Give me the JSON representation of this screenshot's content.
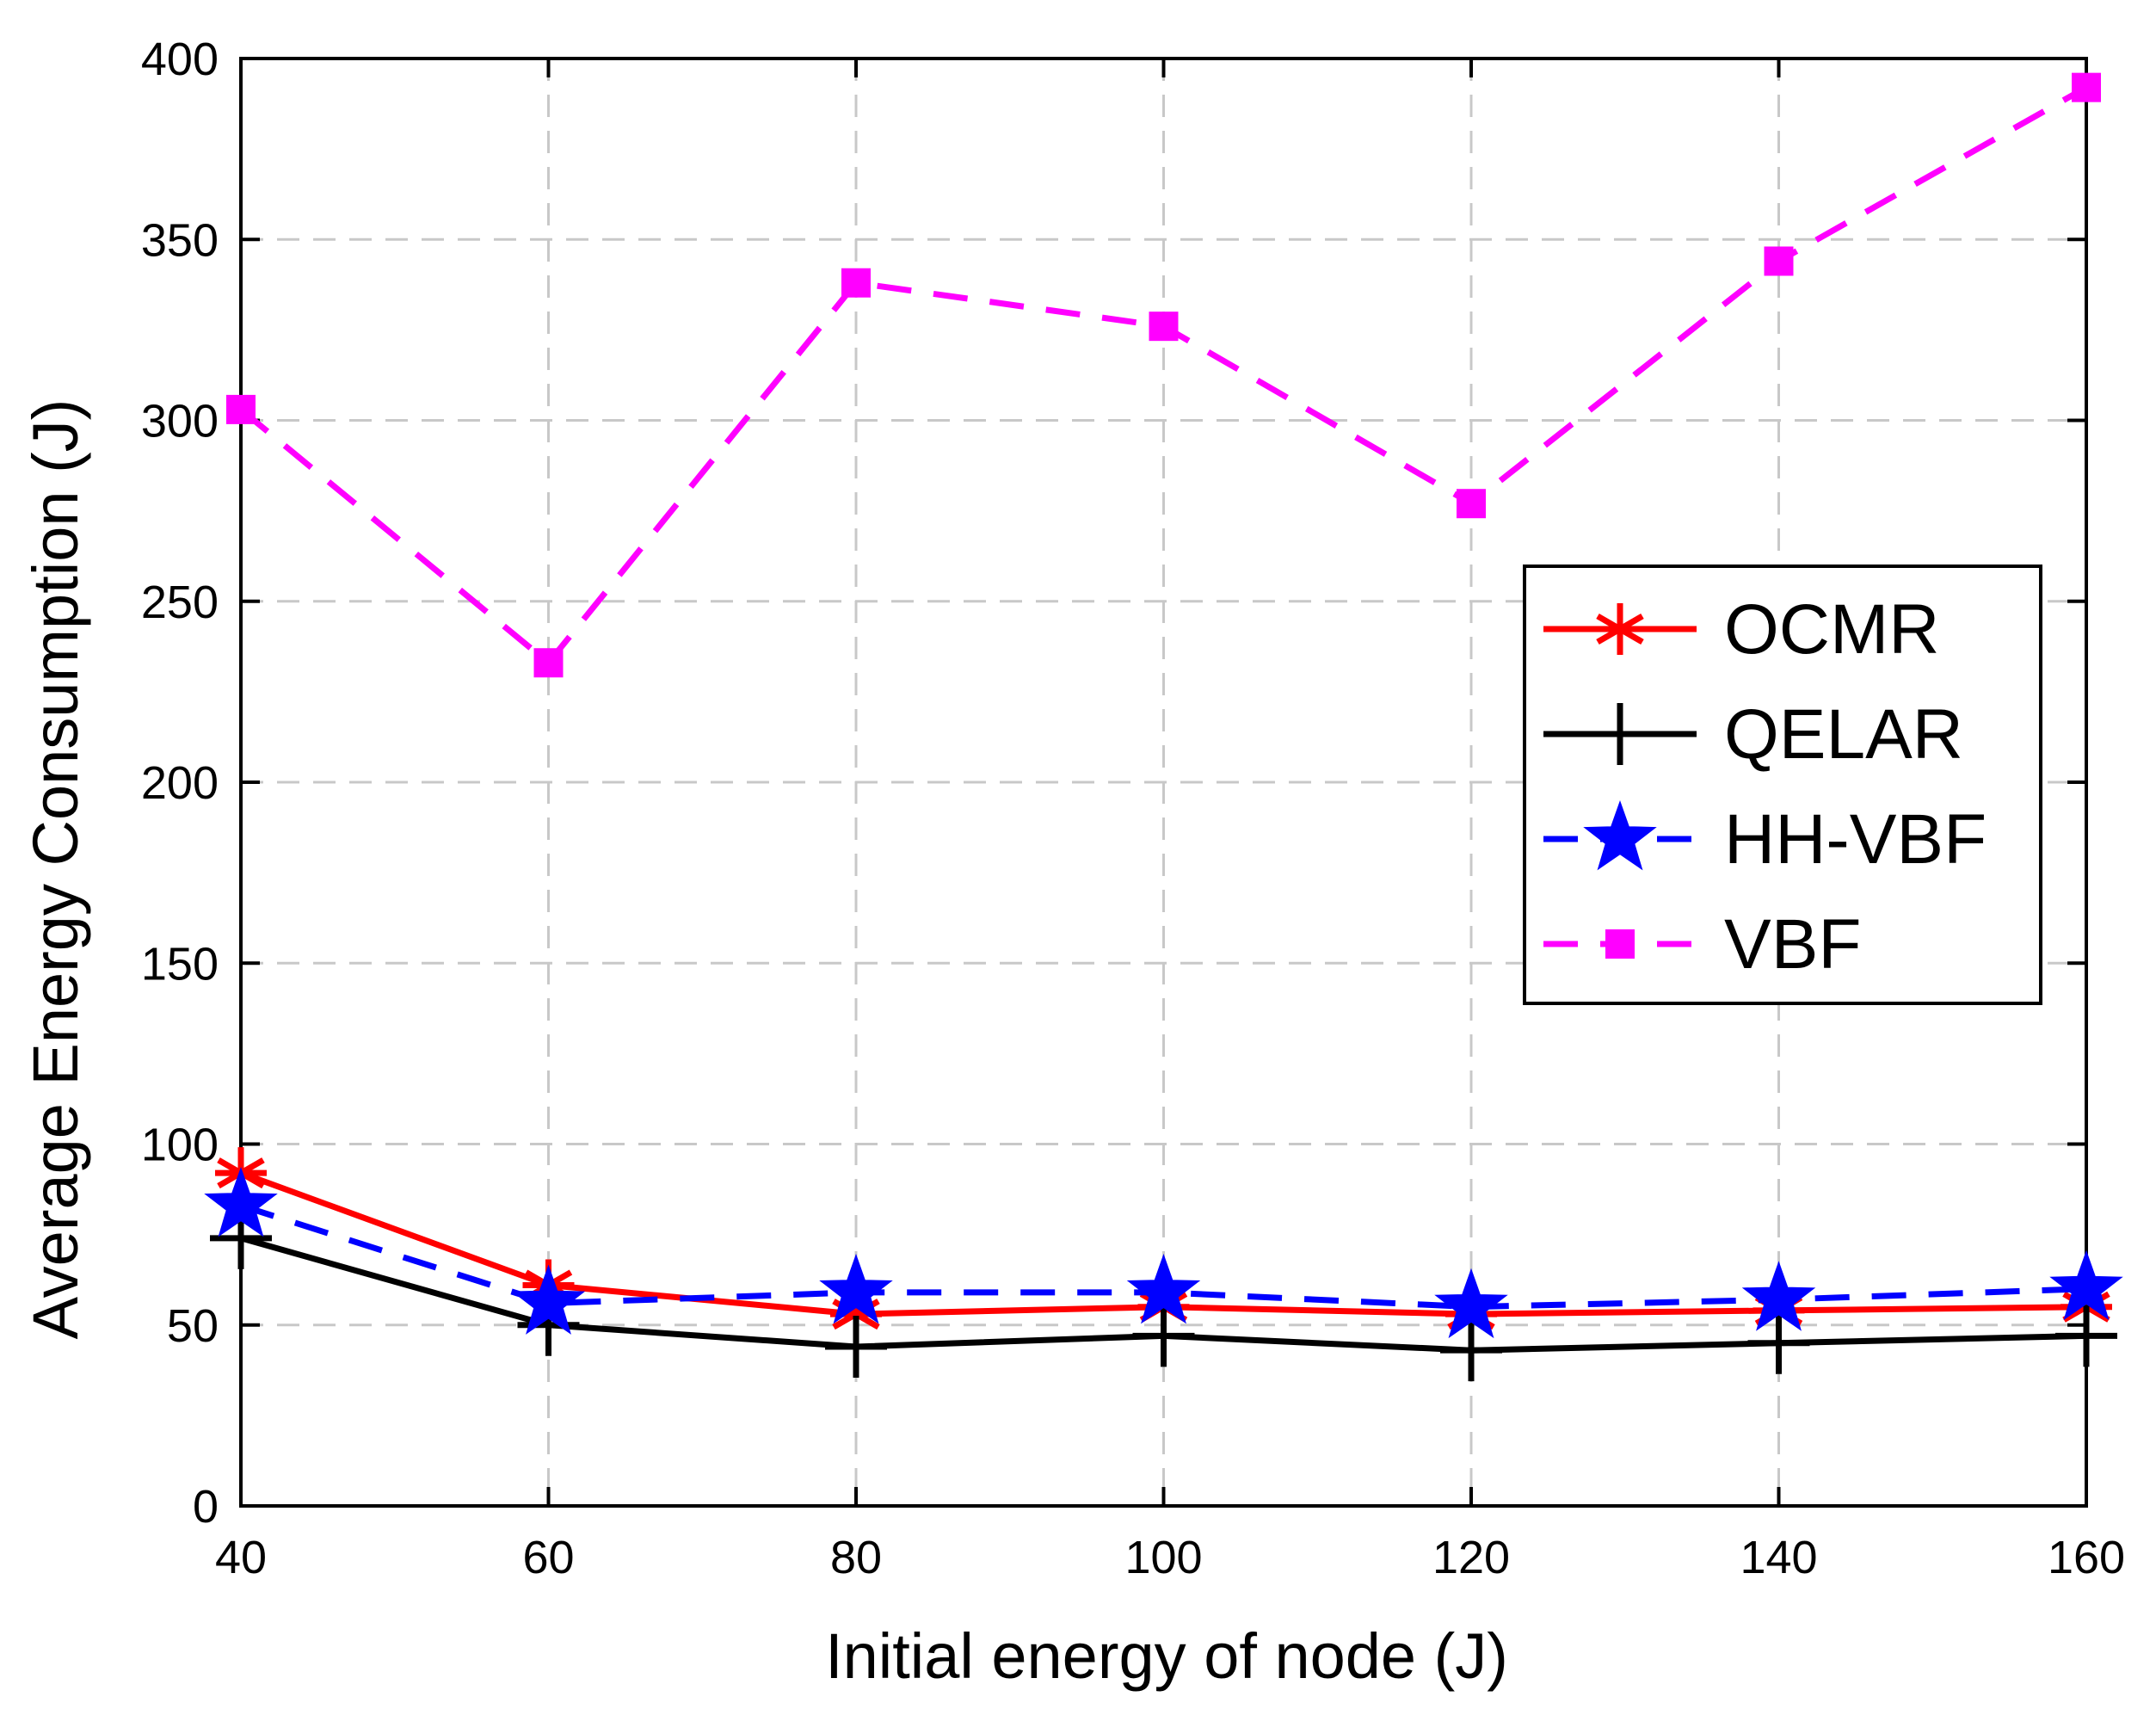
{
  "chart_data": {
    "type": "line",
    "title": "",
    "xlabel": "Initial energy of node (J)",
    "ylabel": "Average Energy Consumption (J)",
    "x": [
      40,
      60,
      80,
      100,
      120,
      140,
      160
    ],
    "xlim": [
      40,
      160
    ],
    "ylim": [
      0,
      400
    ],
    "xticks": [
      40,
      60,
      80,
      100,
      120,
      140,
      160
    ],
    "yticks": [
      0,
      50,
      100,
      150,
      200,
      250,
      300,
      350,
      400
    ],
    "grid": true,
    "legend_position": "right",
    "series": [
      {
        "name": "OCMR",
        "color": "#ff0000",
        "dash": "solid",
        "marker": "asterisk",
        "values": [
          92,
          61,
          53,
          55,
          53,
          54,
          55
        ]
      },
      {
        "name": "QELAR",
        "color": "#000000",
        "dash": "solid",
        "marker": "plus",
        "values": [
          74,
          50,
          44,
          47,
          43,
          45,
          47
        ]
      },
      {
        "name": "HH-VBF",
        "color": "#0000ff",
        "dash": "dashed",
        "marker": "star",
        "values": [
          83,
          56,
          59,
          59,
          55,
          57,
          60
        ]
      },
      {
        "name": "VBF",
        "color": "#ff00ff",
        "dash": "dashed",
        "marker": "square",
        "values": [
          303,
          233,
          338,
          326,
          277,
          344,
          392
        ]
      }
    ]
  }
}
